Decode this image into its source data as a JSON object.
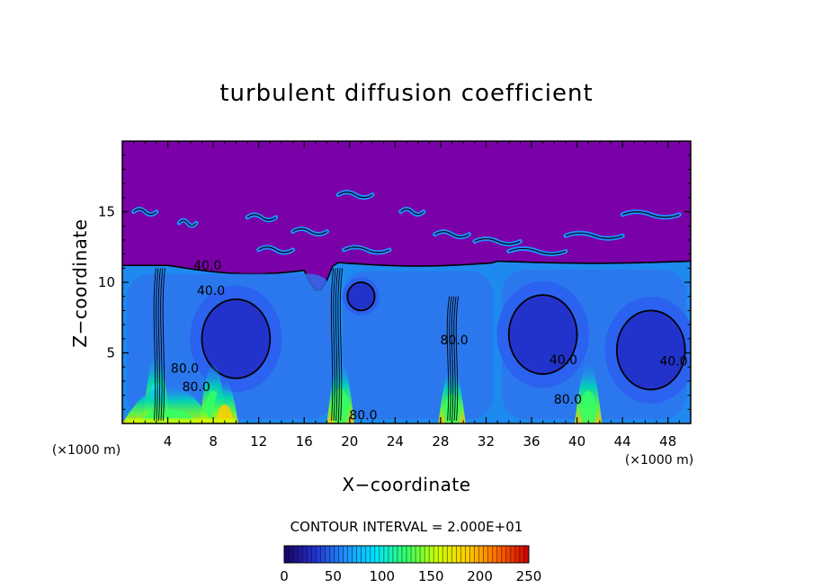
{
  "chart_data": {
    "type": "heatmap",
    "title": "turbulent diffusion coefficient",
    "xlabel": "X−coordinate",
    "ylabel": "Z−coordinate",
    "x_unit_label": "(×1000 m)",
    "x_unit_label_right": "(×1000 m)",
    "xlim": [
      0,
      50
    ],
    "ylim": [
      0,
      20
    ],
    "x_ticks": [
      4,
      8,
      12,
      16,
      20,
      24,
      28,
      32,
      36,
      40,
      44,
      48
    ],
    "y_ticks": [
      5,
      10,
      15
    ],
    "contour_interval_text": "CONTOUR INTERVAL = 2.000E+01",
    "contour_interval": 20,
    "colorbar": {
      "min": 0,
      "max": 250,
      "ticks": [
        0,
        50,
        100,
        150,
        200,
        250
      ],
      "colors": [
        "#1a0066",
        "#2233cc",
        "#1e90ff",
        "#00e5ff",
        "#33ff66",
        "#ccff00",
        "#ffcc00",
        "#ff6600",
        "#cc0000"
      ]
    },
    "background_value": 0,
    "background_color": "#7a00a8",
    "cells": [
      {
        "x0": 0,
        "x1": 19,
        "ztop": 11.2,
        "value": 40
      },
      {
        "x0": 19,
        "x1": 33,
        "ztop": 11.4,
        "value": 40
      },
      {
        "x0": 33,
        "x1": 50,
        "ztop": 11.5,
        "value": 40
      }
    ],
    "minima": [
      {
        "x": 10,
        "z": 6.0,
        "value": 20
      },
      {
        "x": 37,
        "z": 6.3,
        "value": 20
      },
      {
        "x": 46.5,
        "z": 5.2,
        "value": 20
      },
      {
        "x": 21,
        "z": 9.0,
        "value": 30
      }
    ],
    "plumes": [
      {
        "x": 3,
        "z": 2.5,
        "value": 100
      },
      {
        "x": 8,
        "z": 1.8,
        "value": 130
      },
      {
        "x": 9,
        "z": 0.6,
        "value": 200
      },
      {
        "x": 19.2,
        "z": 2.0,
        "value": 110
      },
      {
        "x": 29,
        "z": 1.5,
        "value": 120
      },
      {
        "x": 41,
        "z": 1.8,
        "value": 120
      },
      {
        "x": 4,
        "z": 0.2,
        "value": 120
      }
    ],
    "contour_labels": [
      {
        "text": "40.0",
        "x": 7.5,
        "z": 10.9
      },
      {
        "text": "40.0",
        "x": 7.8,
        "z": 9.1
      },
      {
        "text": "80.0",
        "x": 5.5,
        "z": 3.6
      },
      {
        "text": "80.0",
        "x": 6.5,
        "z": 2.3
      },
      {
        "text": "80.0",
        "x": 29.2,
        "z": 5.6
      },
      {
        "text": "80.0",
        "x": 21.2,
        "z": 0.3
      },
      {
        "text": "40.0",
        "x": 38.8,
        "z": 4.2
      },
      {
        "text": "80.0",
        "x": 39.2,
        "z": 1.4
      },
      {
        "text": "40.0",
        "x": 48.5,
        "z": 4.1
      }
    ]
  }
}
